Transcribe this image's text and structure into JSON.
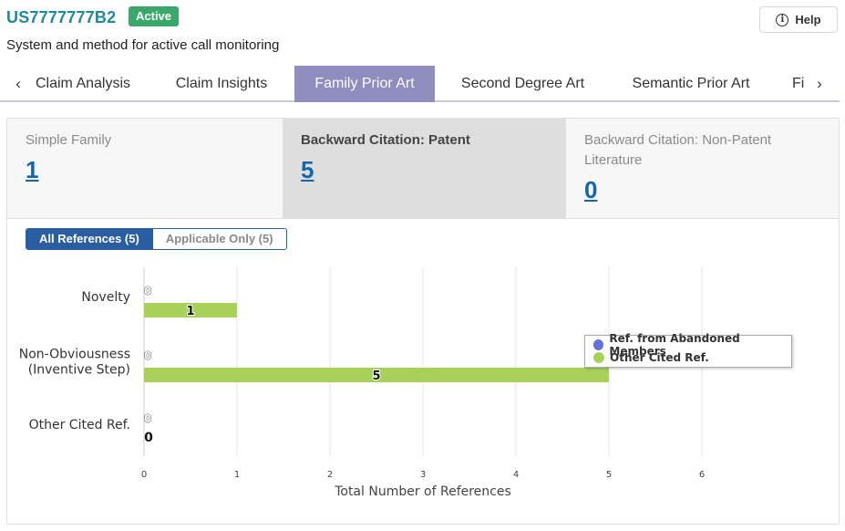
{
  "header": {
    "patent_number": "US7777777B2",
    "status": "Active",
    "title": "System and method for active call monitoring",
    "help_label": "Help"
  },
  "tabs": [
    {
      "label": "Claim Analysis",
      "active": false
    },
    {
      "label": "Claim Insights",
      "active": false
    },
    {
      "label": "Family Prior Art",
      "active": true
    },
    {
      "label": "Second Degree Art",
      "active": false
    },
    {
      "label": "Semantic Prior Art",
      "active": false
    },
    {
      "label": "Fi",
      "active": false
    }
  ],
  "stats": [
    {
      "label": "Simple Family",
      "value": "1",
      "active": false
    },
    {
      "label": "Backward Citation: Patent",
      "value": "5",
      "active": true
    },
    {
      "label": "Backward Citation: Non-Patent Literature",
      "value": "0",
      "active": false
    }
  ],
  "filters": {
    "all_label": "All References (5)",
    "applicable_label": "Applicable Only (5)"
  },
  "colors": {
    "accent_teal": "#1e8a9a",
    "active_badge": "#3aa86b",
    "active_tab": "#8e8dbe",
    "link_blue": "#1565a8",
    "toggle_blue": "#2b5ea1",
    "series_abandoned": "#6272d8",
    "series_other": "#a8d15a"
  },
  "chart_data": {
    "type": "bar",
    "orientation": "horizontal",
    "categories": [
      [
        "Novelty"
      ],
      [
        "Non-Obviousness",
        "(Inventive Step)"
      ],
      [
        "Other Cited Ref."
      ]
    ],
    "series": [
      {
        "name": "Ref. from Abandoned Members",
        "values": [
          0,
          0,
          0
        ],
        "color": "#6272d8"
      },
      {
        "name": "Other Cited Ref.",
        "values": [
          1,
          5,
          0
        ],
        "color": "#a8d15a"
      }
    ],
    "xlabel": "Total Number of References",
    "ylabel": "",
    "xlim": [
      0,
      6
    ],
    "xticks": [
      0,
      1,
      2,
      3,
      4,
      5,
      6
    ],
    "grid": true,
    "legend": "right"
  }
}
